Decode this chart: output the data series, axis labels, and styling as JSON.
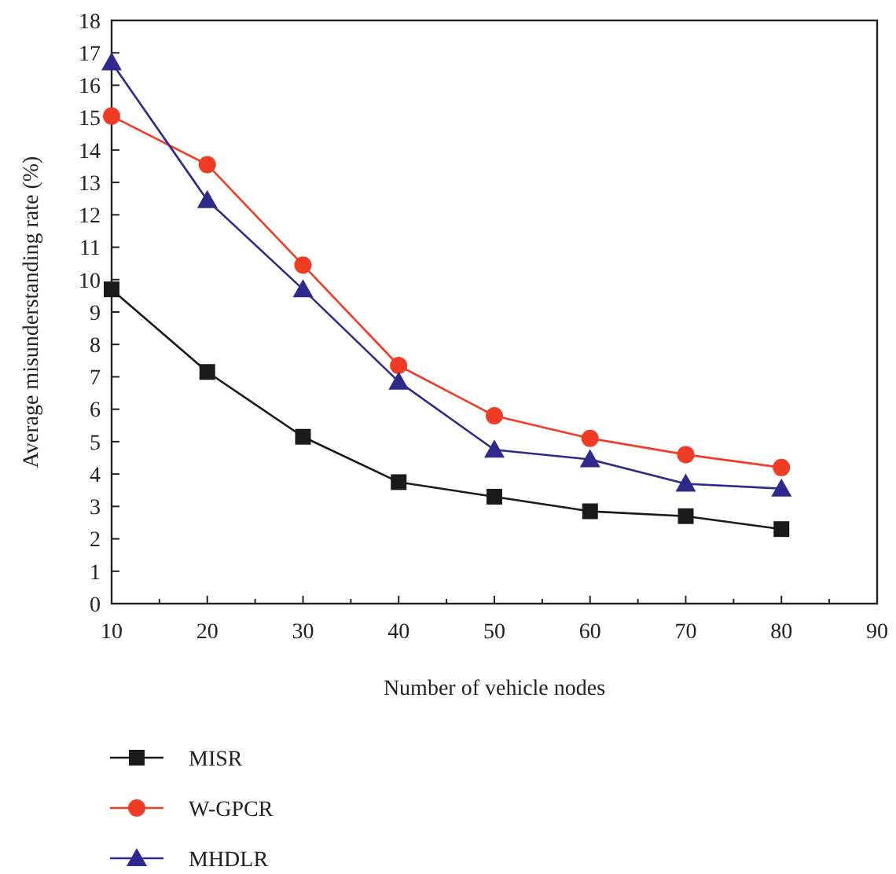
{
  "chart_data": {
    "type": "line",
    "xlabel": "Number of vehicle nodes",
    "ylabel": "Average misunderstanding rate (%)",
    "x": [
      10,
      20,
      30,
      40,
      50,
      60,
      70,
      80
    ],
    "series": [
      {
        "name": "MISR",
        "color": "#1a1a1a",
        "marker": "square",
        "values": [
          9.7,
          7.15,
          5.15,
          3.75,
          3.3,
          2.85,
          2.7,
          2.3
        ]
      },
      {
        "name": "W-GPCR",
        "color": "#f03c24",
        "marker": "circle",
        "values": [
          15.05,
          13.55,
          10.45,
          7.35,
          5.8,
          5.1,
          4.6,
          4.2
        ]
      },
      {
        "name": "MHDLR",
        "color": "#2e2a8c",
        "marker": "triangle",
        "values": [
          16.7,
          12.45,
          9.7,
          6.85,
          4.75,
          4.45,
          3.7,
          3.55
        ]
      }
    ],
    "xlim": [
      10,
      90
    ],
    "xticks": [
      10,
      {
        "value": 15,
        "label": null
      },
      20,
      {
        "value": 25,
        "label": null
      },
      30,
      {
        "value": 35,
        "label": null
      },
      40,
      {
        "value": 45,
        "label": null
      },
      50,
      {
        "value": 55,
        "label": null
      },
      60,
      {
        "value": 65,
        "label": null
      },
      70,
      {
        "value": 75,
        "label": null
      },
      80,
      {
        "value": 85,
        "label": null
      },
      90
    ],
    "ylim": [
      0,
      18
    ],
    "yticks": [
      0,
      1,
      2,
      3,
      4,
      5,
      6,
      7,
      8,
      9,
      10,
      11,
      12,
      13,
      14,
      15,
      16,
      17,
      18
    ],
    "grid": false,
    "legend": "bottom left",
    "line_style": "solid"
  }
}
